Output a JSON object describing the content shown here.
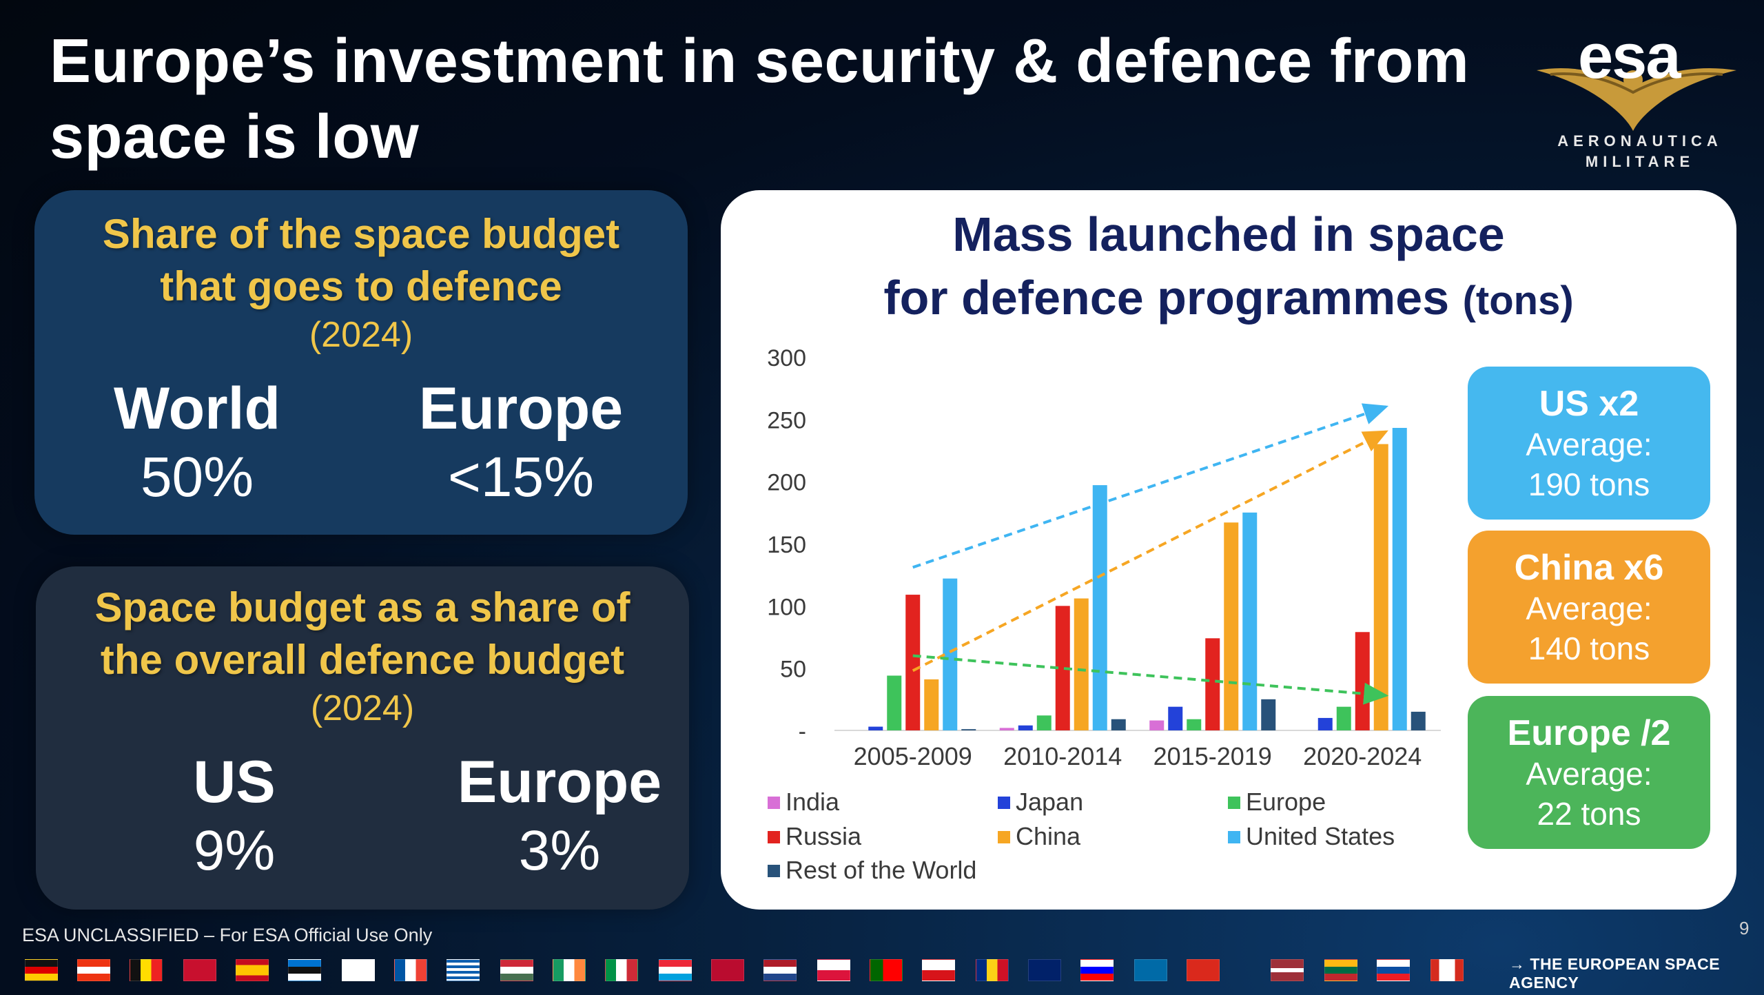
{
  "title": "Europe’s investment in security & defence from space is low",
  "logo": {
    "name": "esa",
    "subtitle": "AERONAUTICA MILITARE"
  },
  "panel_top": {
    "heading_line1": "Share of the space budget",
    "heading_line2": "that goes to defence",
    "year": "(2024)",
    "left_label": "World",
    "left_value": "50%",
    "right_label": "Europe",
    "right_value": "<15%"
  },
  "panel_bottom": {
    "heading_line1": "Space budget as a share of",
    "heading_line2": "the overall defence budget",
    "year": "(2024)",
    "left_label": "US",
    "left_value": "9%",
    "right_label": "Europe",
    "right_value": "3%"
  },
  "chart_title_line1": "Mass launched in space",
  "chart_title_line2": "for defence programmes",
  "chart_title_unit": "(tons)",
  "chart_data": {
    "type": "bar",
    "categories": [
      "2005-2009",
      "2010-2014",
      "2015-2019",
      "2020-2024"
    ],
    "ylim": [
      0,
      300
    ],
    "yticks": [
      0,
      50,
      100,
      150,
      200,
      250,
      300
    ],
    "ytick_labels": [
      "-",
      "50",
      "100",
      "150",
      "200",
      "250",
      "300"
    ],
    "grid": false,
    "legend_position": "bottom",
    "series": [
      {
        "name": "India",
        "color": "#d86fd6",
        "values": [
          0,
          2,
          8,
          0
        ]
      },
      {
        "name": "Japan",
        "color": "#2342d9",
        "values": [
          3,
          4,
          19,
          10
        ]
      },
      {
        "name": "Europe",
        "color": "#3ec35b",
        "values": [
          44,
          12,
          9,
          19
        ]
      },
      {
        "name": "Russia",
        "color": "#e2231f",
        "values": [
          109,
          100,
          74,
          79
        ]
      },
      {
        "name": "China",
        "color": "#f6a623",
        "values": [
          41,
          106,
          167,
          230
        ]
      },
      {
        "name": "United States",
        "color": "#3fb5f2",
        "values": [
          122,
          197,
          175,
          243
        ]
      },
      {
        "name": "Rest of the World",
        "color": "#28527a",
        "values": [
          1,
          9,
          25,
          15
        ]
      }
    ],
    "trend_arrows": [
      {
        "series": "United States",
        "from": [
          0,
          131
        ],
        "to": [
          3,
          260
        ],
        "color": "#3fb5f2"
      },
      {
        "series": "China",
        "from": [
          0,
          48
        ],
        "to": [
          3,
          240
        ],
        "color": "#f6a623"
      },
      {
        "series": "Europe",
        "from": [
          0,
          60
        ],
        "to": [
          3,
          28
        ],
        "color": "#3ec35b"
      }
    ]
  },
  "callouts": [
    {
      "title": "US x2",
      "line1": "Average:",
      "line2": "190 tons",
      "color": "#45b8ef"
    },
    {
      "title": "China x6",
      "line1": "Average:",
      "line2": "140 tons",
      "color": "#f4a12e"
    },
    {
      "title": "Europe /2",
      "line1": "Average:",
      "line2": "22 tons",
      "color": "#4cb55a"
    }
  ],
  "footer": {
    "classification": "ESA UNCLASSIFIED – For ESA Official Use Only",
    "page_number": "9",
    "agency": "→ THE EUROPEAN SPACE AGENCY"
  }
}
